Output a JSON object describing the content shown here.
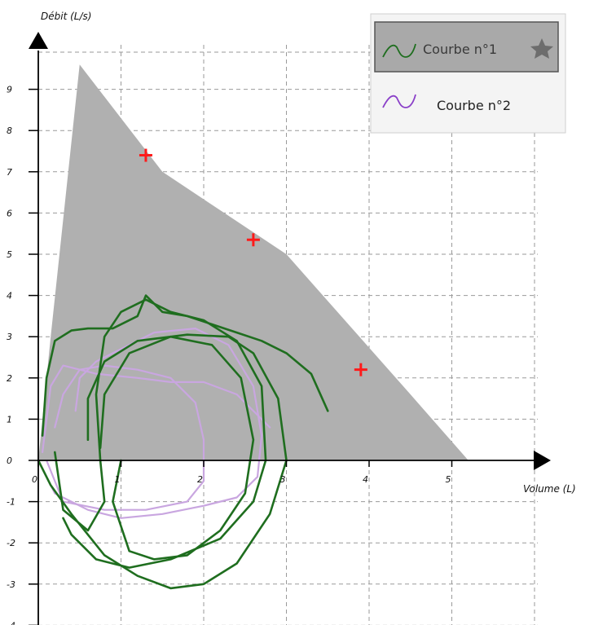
{
  "chart_data": {
    "type": "line",
    "xlabel": "Volume (L)",
    "ylabel": "Débit (L/s)",
    "xlim": [
      0,
      6.0
    ],
    "ylim": [
      -4,
      10
    ],
    "x_ticks": [
      "0",
      "1",
      "2",
      "3",
      "4",
      "5"
    ],
    "y_ticks": [
      "-4",
      "-3",
      "-2",
      "-1",
      "0",
      "1",
      "2",
      "3",
      "4",
      "5",
      "6",
      "7",
      "8",
      "9"
    ],
    "grid": true,
    "legend_position": "top-right",
    "reference_area": {
      "color": "#b0b0b0",
      "points": [
        [
          0.0,
          0.0
        ],
        [
          0.15,
          3.0
        ],
        [
          0.5,
          9.6
        ],
        [
          1.5,
          7.0
        ],
        [
          3.0,
          5.0
        ],
        [
          4.5,
          1.6
        ],
        [
          5.2,
          0.0
        ]
      ]
    },
    "predicted_points": [
      {
        "x": 1.3,
        "y": 7.4
      },
      {
        "x": 2.6,
        "y": 5.35
      },
      {
        "x": 3.9,
        "y": 2.2
      }
    ],
    "predicted_color": "#ff1a1a",
    "series": [
      {
        "name": "Courbe n°1",
        "color": "#1f6e1f",
        "selected": true,
        "values": [
          [
            0.05,
            0.6
          ],
          [
            0.1,
            2.0
          ],
          [
            0.2,
            2.9
          ],
          [
            0.4,
            3.15
          ],
          [
            0.6,
            3.2
          ],
          [
            0.9,
            3.2
          ],
          [
            1.2,
            3.5
          ],
          [
            1.3,
            4.0
          ],
          [
            1.5,
            3.6
          ],
          [
            1.8,
            3.5
          ],
          [
            2.1,
            3.3
          ],
          [
            2.4,
            3.1
          ],
          [
            2.7,
            2.9
          ],
          [
            3.0,
            2.6
          ],
          [
            3.3,
            2.1
          ],
          [
            3.5,
            1.2
          ]
        ],
        "extra_loops": [
          [
            [
              0.2,
              0.2
            ],
            [
              0.3,
              -1.2
            ],
            [
              0.6,
              -1.7
            ],
            [
              0.8,
              -1.0
            ],
            [
              0.75,
              0.0
            ],
            [
              0.7,
              1.6
            ],
            [
              0.8,
              3.0
            ],
            [
              1.0,
              3.6
            ],
            [
              1.3,
              3.9
            ],
            [
              1.6,
              3.6
            ],
            [
              2.0,
              3.4
            ],
            [
              2.4,
              2.9
            ],
            [
              2.7,
              1.8
            ],
            [
              2.75,
              0.0
            ],
            [
              2.6,
              -1.0
            ],
            [
              2.2,
              -1.9
            ],
            [
              1.6,
              -2.4
            ],
            [
              1.1,
              -2.6
            ],
            [
              0.7,
              -2.4
            ],
            [
              0.4,
              -1.8
            ],
            [
              0.3,
              -1.4
            ]
          ],
          [
            [
              0.0,
              0.0
            ],
            [
              0.15,
              -0.6
            ],
            [
              0.4,
              -1.3
            ],
            [
              0.8,
              -2.3
            ],
            [
              1.2,
              -2.8
            ],
            [
              1.6,
              -3.1
            ],
            [
              2.0,
              -3.0
            ],
            [
              2.4,
              -2.5
            ],
            [
              2.8,
              -1.3
            ],
            [
              3.0,
              0.0
            ],
            [
              2.9,
              1.5
            ],
            [
              2.6,
              2.6
            ],
            [
              2.3,
              3.0
            ],
            [
              1.8,
              3.05
            ],
            [
              1.2,
              2.9
            ],
            [
              0.8,
              2.4
            ],
            [
              0.6,
              1.5
            ],
            [
              0.6,
              0.5
            ]
          ],
          [
            [
              1.0,
              0.0
            ],
            [
              0.9,
              -1.0
            ],
            [
              1.1,
              -2.2
            ],
            [
              1.4,
              -2.4
            ],
            [
              1.8,
              -2.3
            ],
            [
              2.2,
              -1.7
            ],
            [
              2.5,
              -0.8
            ],
            [
              2.6,
              0.5
            ],
            [
              2.45,
              2.0
            ],
            [
              2.1,
              2.8
            ],
            [
              1.6,
              3.0
            ],
            [
              1.1,
              2.6
            ],
            [
              0.8,
              1.6
            ],
            [
              0.75,
              0.3
            ]
          ]
        ]
      },
      {
        "name": "Courbe n°2",
        "color": "#c9a6e0",
        "selected": false,
        "values": [
          [
            0.05,
            0.2
          ],
          [
            0.15,
            1.8
          ],
          [
            0.3,
            2.3
          ],
          [
            0.7,
            2.1
          ],
          [
            1.2,
            2.0
          ],
          [
            1.6,
            1.9
          ],
          [
            2.0,
            1.9
          ],
          [
            2.4,
            1.6
          ],
          [
            2.7,
            1.0
          ],
          [
            2.8,
            0.8
          ]
        ],
        "extra_loops": [
          [
            [
              0.0,
              0.0
            ],
            [
              0.2,
              -0.8
            ],
            [
              0.6,
              -1.2
            ],
            [
              1.0,
              -1.4
            ],
            [
              1.5,
              -1.3
            ],
            [
              2.0,
              -1.1
            ],
            [
              2.4,
              -0.9
            ],
            [
              2.65,
              -0.4
            ],
            [
              2.7,
              0.6
            ],
            [
              2.6,
              1.8
            ],
            [
              2.3,
              2.8
            ],
            [
              1.9,
              3.2
            ],
            [
              1.4,
              3.1
            ],
            [
              1.0,
              2.7
            ],
            [
              0.7,
              2.4
            ],
            [
              0.5,
              2.0
            ],
            [
              0.45,
              1.2
            ]
          ],
          [
            [
              0.1,
              0.0
            ],
            [
              0.3,
              -1.0
            ],
            [
              0.8,
              -1.2
            ],
            [
              1.3,
              -1.2
            ],
            [
              1.8,
              -1.0
            ],
            [
              2.0,
              -0.5
            ],
            [
              2.0,
              0.5
            ],
            [
              1.9,
              1.4
            ],
            [
              1.6,
              2.0
            ],
            [
              1.2,
              2.2
            ],
            [
              0.8,
              2.3
            ],
            [
              0.5,
              2.2
            ],
            [
              0.3,
              1.6
            ],
            [
              0.2,
              0.8
            ]
          ]
        ]
      }
    ]
  }
}
